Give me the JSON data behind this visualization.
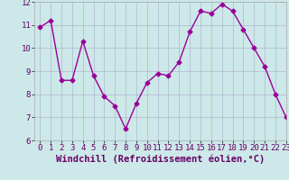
{
  "x": [
    0,
    1,
    2,
    3,
    4,
    5,
    6,
    7,
    8,
    9,
    10,
    11,
    12,
    13,
    14,
    15,
    16,
    17,
    18,
    19,
    20,
    21,
    22,
    23
  ],
  "y": [
    10.9,
    11.2,
    8.6,
    8.6,
    10.3,
    8.8,
    7.9,
    7.5,
    6.5,
    7.6,
    8.5,
    8.9,
    8.8,
    9.4,
    10.7,
    11.6,
    11.5,
    11.9,
    11.6,
    10.8,
    10.0,
    9.2,
    8.0,
    7.0
  ],
  "line_color": "#990099",
  "marker": "D",
  "marker_size": 2.5,
  "bg_color": "#cce8e8",
  "grid_color": "#aaaacc",
  "xlabel": "Windchill (Refroidissement éolien,°C)",
  "ylim": [
    6,
    12
  ],
  "xlim": [
    -0.5,
    23
  ],
  "yticks": [
    6,
    7,
    8,
    9,
    10,
    11,
    12
  ],
  "xticks": [
    0,
    1,
    2,
    3,
    4,
    5,
    6,
    7,
    8,
    9,
    10,
    11,
    12,
    13,
    14,
    15,
    16,
    17,
    18,
    19,
    20,
    21,
    22,
    23
  ],
  "tick_fontsize": 6.5,
  "xlabel_fontsize": 7.5,
  "linewidth": 1.0
}
